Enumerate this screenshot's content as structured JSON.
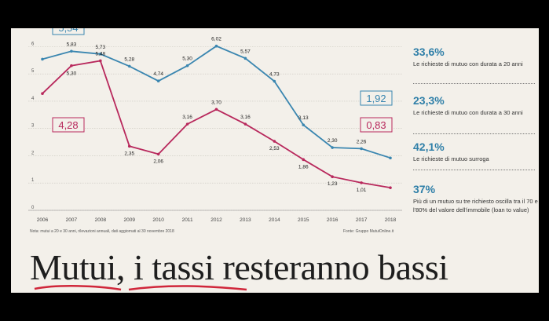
{
  "chart_data": {
    "type": "line",
    "categories": [
      "2006",
      "2007",
      "2008",
      "2009",
      "2010",
      "2011",
      "2012",
      "2013",
      "2014",
      "2015",
      "2016",
      "2017",
      "2018"
    ],
    "ylim": [
      0,
      6.5
    ],
    "yticks": [
      "0",
      "1",
      "2",
      "3",
      "4",
      "5",
      "6"
    ],
    "grid": true,
    "series": [
      {
        "color": "#3a86b0",
        "values": [
          5.54,
          5.83,
          5.73,
          5.28,
          4.74,
          5.3,
          6.02,
          5.57,
          4.73,
          3.13,
          2.3,
          2.26,
          1.92
        ],
        "labels": [
          "5,54",
          "5,83",
          "5,73",
          "5,28",
          "4,74",
          "5,30",
          "6,02",
          "5,57",
          "4,73",
          "3,13",
          "2,30",
          "2,26",
          "1,92"
        ]
      },
      {
        "color": "#b8285c",
        "values": [
          4.28,
          5.3,
          5.48,
          2.35,
          2.06,
          3.16,
          3.7,
          3.16,
          2.53,
          1.86,
          1.23,
          1.01,
          0.83
        ],
        "labels": [
          "4,28",
          "5,30",
          "5,48",
          "2,35",
          "2,06",
          "3,16",
          "3,70",
          "3,16",
          "2,53",
          "1,86",
          "1,23",
          "1,01",
          "0,83"
        ]
      }
    ]
  },
  "notes": {
    "left": "Nota: mutui a 20 e 30 anni, rilevazioni annuali, dati aggiornati al 30 novembre 2018",
    "right": "Fonte: Gruppo MutuiOnline.it"
  },
  "stats": [
    {
      "pct": "33,6%",
      "desc": "Le richieste di mutuo con durata a 20 anni"
    },
    {
      "pct": "23,3%",
      "desc": "Le richieste di mutuo con durata a 30 anni"
    },
    {
      "pct": "42,1%",
      "desc": "Le richieste di mutuo surroga"
    },
    {
      "pct": "37%",
      "desc": "Più di un mutuo su tre richiesto oscilla tra il 70 e l'80% del valore dell'immobile (loan to value)"
    }
  ],
  "headline": "Mutui, i tassi resteranno bassi"
}
